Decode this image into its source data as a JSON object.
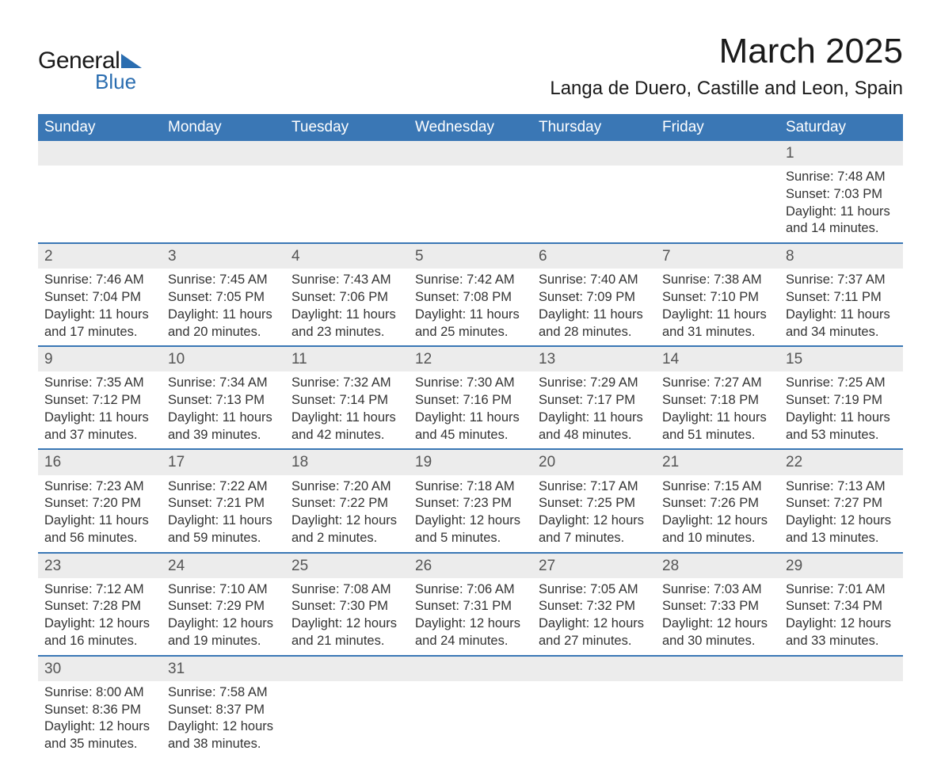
{
  "brand": {
    "name1": "General",
    "name2": "Blue",
    "accent": "#2a6db0"
  },
  "title": "March 2025",
  "location": "Langa de Duero, Castille and Leon, Spain",
  "colors": {
    "header_bg": "#3a77b5",
    "header_fg": "#ffffff",
    "daynum_bg": "#ececec",
    "row_border": "#3a77b5",
    "text": "#333333",
    "background": "#ffffff"
  },
  "typography": {
    "title_fontsize": 44,
    "location_fontsize": 24,
    "header_fontsize": 19,
    "cell_fontsize": 16.5
  },
  "weekdays": [
    "Sunday",
    "Monday",
    "Tuesday",
    "Wednesday",
    "Thursday",
    "Friday",
    "Saturday"
  ],
  "weeks": [
    [
      null,
      null,
      null,
      null,
      null,
      null,
      {
        "n": "1",
        "sr": "Sunrise: 7:48 AM",
        "ss": "Sunset: 7:03 PM",
        "d1": "Daylight: 11 hours",
        "d2": "and 14 minutes."
      }
    ],
    [
      {
        "n": "2",
        "sr": "Sunrise: 7:46 AM",
        "ss": "Sunset: 7:04 PM",
        "d1": "Daylight: 11 hours",
        "d2": "and 17 minutes."
      },
      {
        "n": "3",
        "sr": "Sunrise: 7:45 AM",
        "ss": "Sunset: 7:05 PM",
        "d1": "Daylight: 11 hours",
        "d2": "and 20 minutes."
      },
      {
        "n": "4",
        "sr": "Sunrise: 7:43 AM",
        "ss": "Sunset: 7:06 PM",
        "d1": "Daylight: 11 hours",
        "d2": "and 23 minutes."
      },
      {
        "n": "5",
        "sr": "Sunrise: 7:42 AM",
        "ss": "Sunset: 7:08 PM",
        "d1": "Daylight: 11 hours",
        "d2": "and 25 minutes."
      },
      {
        "n": "6",
        "sr": "Sunrise: 7:40 AM",
        "ss": "Sunset: 7:09 PM",
        "d1": "Daylight: 11 hours",
        "d2": "and 28 minutes."
      },
      {
        "n": "7",
        "sr": "Sunrise: 7:38 AM",
        "ss": "Sunset: 7:10 PM",
        "d1": "Daylight: 11 hours",
        "d2": "and 31 minutes."
      },
      {
        "n": "8",
        "sr": "Sunrise: 7:37 AM",
        "ss": "Sunset: 7:11 PM",
        "d1": "Daylight: 11 hours",
        "d2": "and 34 minutes."
      }
    ],
    [
      {
        "n": "9",
        "sr": "Sunrise: 7:35 AM",
        "ss": "Sunset: 7:12 PM",
        "d1": "Daylight: 11 hours",
        "d2": "and 37 minutes."
      },
      {
        "n": "10",
        "sr": "Sunrise: 7:34 AM",
        "ss": "Sunset: 7:13 PM",
        "d1": "Daylight: 11 hours",
        "d2": "and 39 minutes."
      },
      {
        "n": "11",
        "sr": "Sunrise: 7:32 AM",
        "ss": "Sunset: 7:14 PM",
        "d1": "Daylight: 11 hours",
        "d2": "and 42 minutes."
      },
      {
        "n": "12",
        "sr": "Sunrise: 7:30 AM",
        "ss": "Sunset: 7:16 PM",
        "d1": "Daylight: 11 hours",
        "d2": "and 45 minutes."
      },
      {
        "n": "13",
        "sr": "Sunrise: 7:29 AM",
        "ss": "Sunset: 7:17 PM",
        "d1": "Daylight: 11 hours",
        "d2": "and 48 minutes."
      },
      {
        "n": "14",
        "sr": "Sunrise: 7:27 AM",
        "ss": "Sunset: 7:18 PM",
        "d1": "Daylight: 11 hours",
        "d2": "and 51 minutes."
      },
      {
        "n": "15",
        "sr": "Sunrise: 7:25 AM",
        "ss": "Sunset: 7:19 PM",
        "d1": "Daylight: 11 hours",
        "d2": "and 53 minutes."
      }
    ],
    [
      {
        "n": "16",
        "sr": "Sunrise: 7:23 AM",
        "ss": "Sunset: 7:20 PM",
        "d1": "Daylight: 11 hours",
        "d2": "and 56 minutes."
      },
      {
        "n": "17",
        "sr": "Sunrise: 7:22 AM",
        "ss": "Sunset: 7:21 PM",
        "d1": "Daylight: 11 hours",
        "d2": "and 59 minutes."
      },
      {
        "n": "18",
        "sr": "Sunrise: 7:20 AM",
        "ss": "Sunset: 7:22 PM",
        "d1": "Daylight: 12 hours",
        "d2": "and 2 minutes."
      },
      {
        "n": "19",
        "sr": "Sunrise: 7:18 AM",
        "ss": "Sunset: 7:23 PM",
        "d1": "Daylight: 12 hours",
        "d2": "and 5 minutes."
      },
      {
        "n": "20",
        "sr": "Sunrise: 7:17 AM",
        "ss": "Sunset: 7:25 PM",
        "d1": "Daylight: 12 hours",
        "d2": "and 7 minutes."
      },
      {
        "n": "21",
        "sr": "Sunrise: 7:15 AM",
        "ss": "Sunset: 7:26 PM",
        "d1": "Daylight: 12 hours",
        "d2": "and 10 minutes."
      },
      {
        "n": "22",
        "sr": "Sunrise: 7:13 AM",
        "ss": "Sunset: 7:27 PM",
        "d1": "Daylight: 12 hours",
        "d2": "and 13 minutes."
      }
    ],
    [
      {
        "n": "23",
        "sr": "Sunrise: 7:12 AM",
        "ss": "Sunset: 7:28 PM",
        "d1": "Daylight: 12 hours",
        "d2": "and 16 minutes."
      },
      {
        "n": "24",
        "sr": "Sunrise: 7:10 AM",
        "ss": "Sunset: 7:29 PM",
        "d1": "Daylight: 12 hours",
        "d2": "and 19 minutes."
      },
      {
        "n": "25",
        "sr": "Sunrise: 7:08 AM",
        "ss": "Sunset: 7:30 PM",
        "d1": "Daylight: 12 hours",
        "d2": "and 21 minutes."
      },
      {
        "n": "26",
        "sr": "Sunrise: 7:06 AM",
        "ss": "Sunset: 7:31 PM",
        "d1": "Daylight: 12 hours",
        "d2": "and 24 minutes."
      },
      {
        "n": "27",
        "sr": "Sunrise: 7:05 AM",
        "ss": "Sunset: 7:32 PM",
        "d1": "Daylight: 12 hours",
        "d2": "and 27 minutes."
      },
      {
        "n": "28",
        "sr": "Sunrise: 7:03 AM",
        "ss": "Sunset: 7:33 PM",
        "d1": "Daylight: 12 hours",
        "d2": "and 30 minutes."
      },
      {
        "n": "29",
        "sr": "Sunrise: 7:01 AM",
        "ss": "Sunset: 7:34 PM",
        "d1": "Daylight: 12 hours",
        "d2": "and 33 minutes."
      }
    ],
    [
      {
        "n": "30",
        "sr": "Sunrise: 8:00 AM",
        "ss": "Sunset: 8:36 PM",
        "d1": "Daylight: 12 hours",
        "d2": "and 35 minutes."
      },
      {
        "n": "31",
        "sr": "Sunrise: 7:58 AM",
        "ss": "Sunset: 8:37 PM",
        "d1": "Daylight: 12 hours",
        "d2": "and 38 minutes."
      },
      null,
      null,
      null,
      null,
      null
    ]
  ]
}
